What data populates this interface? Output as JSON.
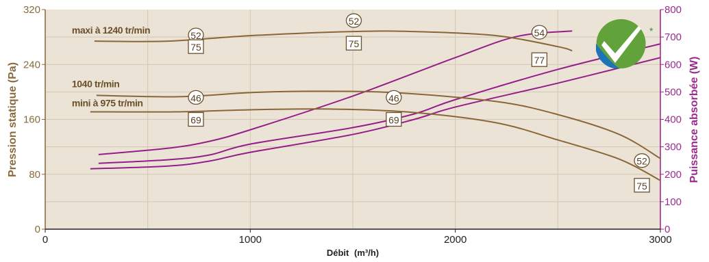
{
  "chart_data": {
    "type": "line",
    "title": "",
    "xlabel": "Débit",
    "xlabel_unit": "(m³/h)",
    "ylabel_left": "Pression statique (Pa)",
    "ylabel_right": "Puissance absorbée (W)",
    "xlim": [
      0,
      3000
    ],
    "ylim_left": [
      0,
      320
    ],
    "ylim_right": [
      0,
      800
    ],
    "x_ticks": [
      "0",
      "1000",
      "2000",
      "3000"
    ],
    "y_ticks_left": [
      "0",
      "80",
      "160",
      "240",
      "320"
    ],
    "y_ticks_right": [
      "0",
      "100",
      "200",
      "300",
      "400",
      "500",
      "600",
      "700",
      "800"
    ],
    "grid": true,
    "colors": {
      "pressure": "#8a6636",
      "power": "#951d8a",
      "background": "#ece3d7",
      "grid": "#d3c6b2"
    },
    "pressure_series": [
      {
        "label": "maxi à 1240 tr/min",
        "points": [
          [
            240,
            274
          ],
          [
            600,
            274
          ],
          [
            1000,
            282
          ],
          [
            1500,
            288
          ],
          [
            1800,
            288
          ],
          [
            2200,
            282
          ],
          [
            2500,
            266
          ],
          [
            2570,
            260
          ]
        ]
      },
      {
        "label": "1040 tr/min",
        "points": [
          [
            250,
            195
          ],
          [
            650,
            193
          ],
          [
            1000,
            199
          ],
          [
            1300,
            201
          ],
          [
            1700,
            199
          ],
          [
            2200,
            186
          ],
          [
            2500,
            167
          ],
          [
            2800,
            138
          ],
          [
            3000,
            103
          ]
        ]
      },
      {
        "label": "mini à 975 tr/min",
        "points": [
          [
            220,
            171
          ],
          [
            650,
            171
          ],
          [
            1000,
            174
          ],
          [
            1400,
            175
          ],
          [
            1800,
            170
          ],
          [
            2200,
            155
          ],
          [
            2500,
            130
          ],
          [
            2800,
            102
          ],
          [
            3000,
            71
          ]
        ]
      }
    ],
    "power_series": [
      {
        "name": "maxi",
        "points": [
          [
            260,
            272
          ],
          [
            600,
            295
          ],
          [
            800,
            320
          ],
          [
            1000,
            362
          ],
          [
            1500,
            485
          ],
          [
            2000,
            625
          ],
          [
            2300,
            702
          ],
          [
            2570,
            722
          ]
        ]
      },
      {
        "name": "1040 tr/min",
        "points": [
          [
            260,
            240
          ],
          [
            600,
            253
          ],
          [
            800,
            270
          ],
          [
            1000,
            310
          ],
          [
            1500,
            370
          ],
          [
            1800,
            420
          ],
          [
            2000,
            472
          ],
          [
            2500,
            582
          ],
          [
            3000,
            675
          ]
        ]
      },
      {
        "name": "mini",
        "points": [
          [
            220,
            220
          ],
          [
            600,
            230
          ],
          [
            800,
            248
          ],
          [
            1000,
            280
          ],
          [
            1500,
            345
          ],
          [
            1800,
            400
          ],
          [
            2000,
            445
          ],
          [
            2500,
            532
          ],
          [
            3000,
            625
          ]
        ]
      }
    ],
    "sound_badges": [
      {
        "shape": "circle",
        "text": "52",
        "x": 735,
        "y": 283
      },
      {
        "shape": "square",
        "text": "75",
        "x": 735,
        "y": 266
      },
      {
        "shape": "circle",
        "text": "52",
        "x": 1505,
        "y": 304
      },
      {
        "shape": "square",
        "text": "75",
        "x": 1505,
        "y": 271
      },
      {
        "shape": "circle",
        "text": "54",
        "x": 2410,
        "y": 287
      },
      {
        "shape": "square",
        "text": "77",
        "x": 2410,
        "y": 247
      },
      {
        "shape": "circle",
        "text": "46",
        "x": 735,
        "y": 192
      },
      {
        "shape": "square",
        "text": "69",
        "x": 735,
        "y": 160
      },
      {
        "shape": "circle",
        "text": "46",
        "x": 1700,
        "y": 192
      },
      {
        "shape": "square",
        "text": "69",
        "x": 1700,
        "y": 160
      },
      {
        "shape": "circle",
        "text": "52",
        "x": 2910,
        "y": 100
      },
      {
        "shape": "square",
        "text": "75",
        "x": 2910,
        "y": 64
      }
    ],
    "label_positions": [
      {
        "x": 130,
        "y": 290
      },
      {
        "x": 130,
        "y": 212
      },
      {
        "x": 130,
        "y": 184
      }
    ],
    "logo": {
      "name": "checkmark-certification-logo",
      "mark": "*"
    }
  }
}
